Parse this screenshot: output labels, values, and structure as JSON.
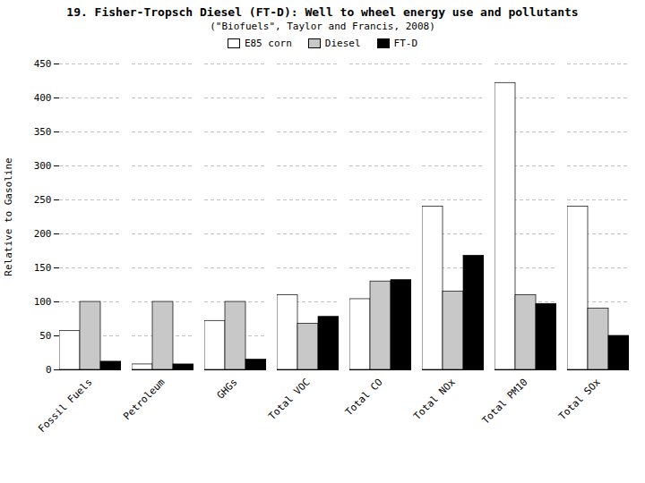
{
  "chart_data": {
    "type": "bar",
    "title": "19. Fisher-Tropsch Diesel (FT-D): Well to wheel energy use and pollutants",
    "subtitle": "(\"Biofuels\", Taylor and Francis, 2008)",
    "categories": [
      "Fossil Fuels",
      "Petroleum",
      "GHGs",
      "Total VOC",
      "Total CO",
      "Total NOx",
      "Total PM10",
      "Total SOx"
    ],
    "series": [
      {
        "name": "E85 corn",
        "color": "#ffffff",
        "values": [
          57,
          8,
          72,
          110,
          104,
          240,
          422,
          240
        ]
      },
      {
        "name": "Diesel",
        "color": "#c8c8c8",
        "values": [
          100,
          100,
          100,
          68,
          130,
          115,
          110,
          90
        ]
      },
      {
        "name": "FT-D",
        "color": "#000000",
        "values": [
          12,
          8,
          15,
          78,
          132,
          168,
          97,
          50
        ]
      }
    ],
    "ylabel": "Relative to Gasoline",
    "ylim": [
      0,
      450
    ],
    "yticks": [
      0,
      50,
      100,
      150,
      200,
      250,
      300,
      350,
      400,
      450
    ],
    "grid": true,
    "legend": "top"
  }
}
